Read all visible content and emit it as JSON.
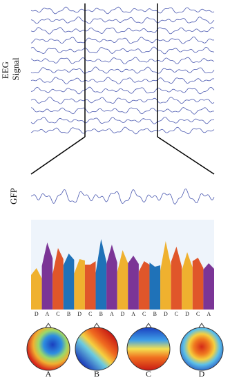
{
  "eeg_label": [
    "EEG",
    "Signal"
  ],
  "gfp_label": "GFP",
  "sequence": [
    "D",
    "A",
    "C",
    "B",
    "D",
    "C",
    "B",
    "A",
    "D",
    "A",
    "C",
    "B",
    "D",
    "C",
    "D",
    "C",
    "A"
  ],
  "classes": [
    {
      "label": "A",
      "color": "#7b3596"
    },
    {
      "label": "B",
      "color": "#1f72b8"
    },
    {
      "label": "C",
      "color": "#e0562a"
    },
    {
      "label": "D",
      "color": "#efb12f"
    }
  ]
}
